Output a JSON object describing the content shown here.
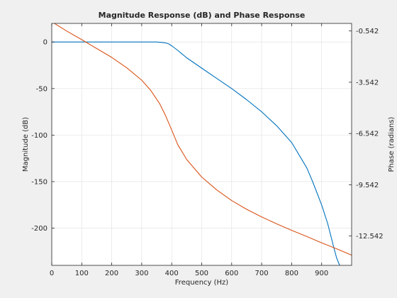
{
  "chart_data": {
    "type": "line",
    "title": "Magnitude Response (dB) and Phase Response",
    "xlabel": "Frequency (Hz)",
    "ylabel_left": "Magnitude (dB)",
    "ylabel_right": "Phase (radians)",
    "xlim": [
      0,
      1000
    ],
    "ylim_left": [
      -240,
      20
    ],
    "ylim_right": [
      -14.26,
      -0.1
    ],
    "x_ticks": [
      "0",
      "100",
      "200",
      "300",
      "400",
      "500",
      "600",
      "700",
      "800",
      "900"
    ],
    "x_tick_values": [
      0,
      100,
      200,
      300,
      400,
      500,
      600,
      700,
      800,
      900
    ],
    "y_left_ticks": [
      "0",
      "-50",
      "-100",
      "-150",
      "-200"
    ],
    "y_left_tick_values": [
      0,
      -50,
      -100,
      -150,
      -200
    ],
    "y_right_ticks": [
      "-0.542",
      "-3.542",
      "-6.542",
      "-9.542",
      "-12.542"
    ],
    "y_right_tick_values": [
      -0.542,
      -3.542,
      -6.542,
      -9.542,
      -12.542
    ],
    "grid": true,
    "series": [
      {
        "axis": "left",
        "color": "#0072bd",
        "x": [
          0,
          100,
          200,
          300,
          350,
          370,
          380,
          390,
          400,
          420,
          450,
          500,
          550,
          600,
          650,
          700,
          750,
          800,
          850,
          870,
          900,
          920,
          940,
          950,
          960
        ],
        "y": [
          0,
          0,
          0,
          0,
          0,
          -0.5,
          -1,
          -2,
          -4,
          -9,
          -17,
          -28,
          -39,
          -50,
          -62,
          -75,
          -90,
          -108,
          -135,
          -150,
          -175,
          -195,
          -220,
          -232,
          -240
        ]
      },
      {
        "axis": "right",
        "color": "#d95319",
        "x": [
          0,
          50,
          100,
          150,
          200,
          250,
          300,
          330,
          360,
          380,
          400,
          420,
          450,
          500,
          550,
          600,
          650,
          700,
          750,
          800,
          850,
          900,
          950,
          1000
        ],
        "y": [
          0.0,
          -0.55,
          -1.05,
          -1.57,
          -2.09,
          -2.7,
          -3.42,
          -4.02,
          -4.8,
          -5.51,
          -6.34,
          -7.19,
          -8.07,
          -9.09,
          -9.84,
          -10.47,
          -10.98,
          -11.43,
          -11.83,
          -12.21,
          -12.57,
          -12.94,
          -13.29,
          -13.66
        ]
      }
    ]
  }
}
